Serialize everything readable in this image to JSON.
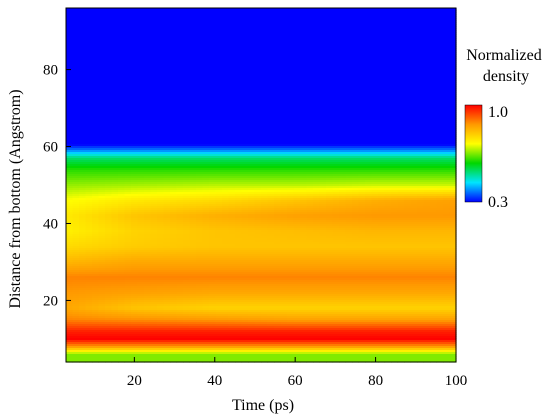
{
  "chart_data": {
    "type": "heatmap",
    "title": "",
    "xlabel": "Time (ps)",
    "ylabel": "Distance from bottom (Angstrom)",
    "xlim": [
      3,
      100
    ],
    "ylim": [
      4,
      96
    ],
    "xticks": [
      20,
      40,
      60,
      80,
      100
    ],
    "yticks": [
      20,
      40,
      60,
      80
    ],
    "colorbar": {
      "title_lines": [
        "Normalized",
        "density"
      ],
      "min": 0.3,
      "max": 1.0,
      "min_label": "0.3",
      "max_label": "1.0",
      "colormap": [
        "#0000ff",
        "#00e5ff",
        "#00d700",
        "#ffff00",
        "#ff9900",
        "#ff0000"
      ]
    },
    "x_samples": [
      3,
      20,
      40,
      60,
      80,
      100
    ],
    "density_profile": [
      {
        "y": 4,
        "density": [
          0.65,
          0.65,
          0.65,
          0.65,
          0.65,
          0.65
        ]
      },
      {
        "y": 6,
        "density": [
          0.65,
          0.65,
          0.65,
          0.65,
          0.65,
          0.65
        ]
      },
      {
        "y": 8,
        "density": [
          0.86,
          0.86,
          0.86,
          0.86,
          0.86,
          0.86
        ]
      },
      {
        "y": 10,
        "density": [
          1.0,
          1.0,
          1.0,
          1.0,
          1.0,
          1.0
        ]
      },
      {
        "y": 12,
        "density": [
          0.97,
          0.97,
          0.97,
          0.97,
          0.97,
          0.97
        ]
      },
      {
        "y": 15,
        "density": [
          0.88,
          0.87,
          0.86,
          0.85,
          0.85,
          0.85
        ]
      },
      {
        "y": 18,
        "density": [
          0.84,
          0.8,
          0.78,
          0.78,
          0.78,
          0.78
        ]
      },
      {
        "y": 22,
        "density": [
          0.86,
          0.85,
          0.84,
          0.84,
          0.84,
          0.84
        ]
      },
      {
        "y": 26,
        "density": [
          0.88,
          0.88,
          0.88,
          0.88,
          0.88,
          0.88
        ]
      },
      {
        "y": 30,
        "density": [
          0.82,
          0.84,
          0.84,
          0.84,
          0.84,
          0.84
        ]
      },
      {
        "y": 34,
        "density": [
          0.77,
          0.79,
          0.8,
          0.8,
          0.8,
          0.8
        ]
      },
      {
        "y": 38,
        "density": [
          0.74,
          0.78,
          0.8,
          0.81,
          0.82,
          0.82
        ]
      },
      {
        "y": 42,
        "density": [
          0.75,
          0.8,
          0.83,
          0.85,
          0.86,
          0.86
        ]
      },
      {
        "y": 46,
        "density": [
          0.72,
          0.75,
          0.77,
          0.8,
          0.83,
          0.85
        ]
      },
      {
        "y": 50,
        "density": [
          0.66,
          0.67,
          0.68,
          0.68,
          0.69,
          0.69
        ]
      },
      {
        "y": 54,
        "density": [
          0.6,
          0.6,
          0.6,
          0.6,
          0.6,
          0.6
        ]
      },
      {
        "y": 57,
        "density": [
          0.52,
          0.52,
          0.52,
          0.52,
          0.52,
          0.52
        ]
      },
      {
        "y": 59,
        "density": [
          0.38,
          0.38,
          0.38,
          0.38,
          0.38,
          0.38
        ]
      },
      {
        "y": 60.5,
        "density": [
          0.3,
          0.3,
          0.3,
          0.3,
          0.3,
          0.3
        ]
      },
      {
        "y": 96,
        "density": [
          0.3,
          0.3,
          0.3,
          0.3,
          0.3,
          0.3
        ]
      }
    ]
  }
}
